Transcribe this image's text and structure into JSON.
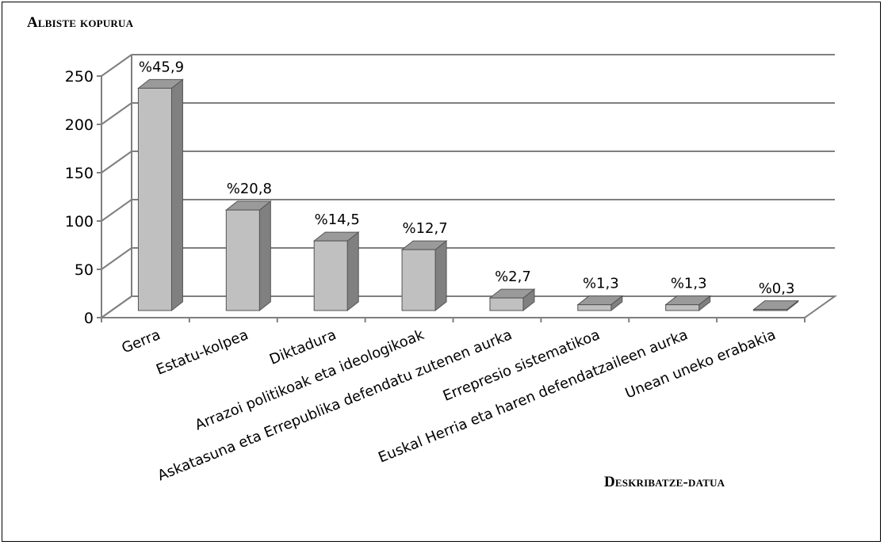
{
  "chart_data": {
    "type": "bar",
    "ylabel": "Albiste kopurua",
    "xlabel": "Deskribatze-datua",
    "categories": [
      "Gerra",
      "Estatu-kolpea",
      "Diktadura",
      "Arrazoi politikoak eta ideologikoak",
      "Askatasuna eta Errepublika defendatu zutenen aurka",
      "Errepresio sistematikoa",
      "Euskal Herria eta haren defendatzaileen aurka",
      "Unean uneko erabakia"
    ],
    "values": [
      230,
      104,
      72,
      63,
      13,
      6,
      6,
      1
    ],
    "data_labels": [
      "%45,9",
      "%20,8",
      "%14,5",
      "%12,7",
      "%2,7",
      "%1,3",
      "%1,3",
      "%0,3"
    ],
    "ylim": [
      0,
      250
    ],
    "yticks": [
      0,
      50,
      100,
      150,
      200,
      250
    ],
    "grid": true,
    "style": "3d-column",
    "colors": {
      "front": "#c0c0c0",
      "side": "#808080",
      "top": "#9a9a9a"
    }
  }
}
